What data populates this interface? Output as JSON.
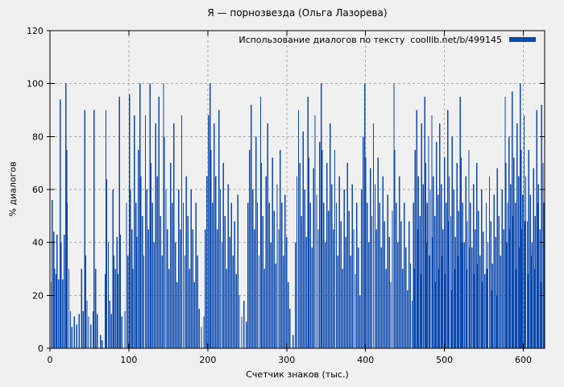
{
  "title": "Я — порнозвезда (Ольга Лазорева)",
  "legend": {
    "label": "Использование диалогов по тексту  coollib.net/b/499145"
  },
  "axes": {
    "y_label": "% диалогов",
    "x_label": "Счетчик знаков (тыс.)"
  },
  "colors": {
    "background": "#f0f0f0",
    "bar": "#0b49ae",
    "grid": "#a9a9a9",
    "border": "#000000",
    "text": "#000000"
  },
  "chart_data": {
    "type": "bar",
    "style": "impulses",
    "title": "Я — порнозвезда (Ольга Лазорева)",
    "legend_entry": "Использование диалогов по тексту  coollib.net/b/499145",
    "xlabel": "Счетчик знаков (тыс.)",
    "ylabel": "% диалогов",
    "xlim": [
      0,
      627
    ],
    "ylim": [
      0,
      120
    ],
    "xticks": [
      0,
      100,
      200,
      300,
      400,
      500,
      600
    ],
    "yticks": [
      0,
      20,
      40,
      60,
      80,
      100,
      120
    ],
    "grid": true,
    "grid_style": "dashed",
    "legend_position": "top-right-inside",
    "points": [
      [
        0,
        70
      ],
      [
        2,
        25
      ],
      [
        3,
        56
      ],
      [
        5,
        44
      ],
      [
        6,
        30
      ],
      [
        8,
        28
      ],
      [
        9,
        43
      ],
      [
        11,
        26
      ],
      [
        13,
        94
      ],
      [
        14,
        40
      ],
      [
        16,
        26
      ],
      [
        18,
        43
      ],
      [
        20,
        100
      ],
      [
        21,
        75
      ],
      [
        22,
        55
      ],
      [
        24,
        30
      ],
      [
        26,
        14
      ],
      [
        28,
        8
      ],
      [
        31,
        12
      ],
      [
        34,
        9
      ],
      [
        37,
        13
      ],
      [
        40,
        30
      ],
      [
        42,
        14
      ],
      [
        44,
        90
      ],
      [
        45,
        35
      ],
      [
        47,
        18
      ],
      [
        49,
        12
      ],
      [
        52,
        9
      ],
      [
        55,
        14
      ],
      [
        56,
        90
      ],
      [
        58,
        30
      ],
      [
        60,
        13
      ],
      [
        64,
        5
      ],
      [
        66,
        3
      ],
      [
        70,
        28
      ],
      [
        71,
        90
      ],
      [
        72,
        64
      ],
      [
        74,
        40
      ],
      [
        76,
        18
      ],
      [
        78,
        13
      ],
      [
        80,
        60
      ],
      [
        81,
        35
      ],
      [
        83,
        30
      ],
      [
        85,
        42
      ],
      [
        86,
        28
      ],
      [
        88,
        95
      ],
      [
        89,
        43
      ],
      [
        91,
        12
      ],
      [
        95,
        14
      ],
      [
        97,
        55
      ],
      [
        99,
        35
      ],
      [
        101,
        96
      ],
      [
        102,
        60
      ],
      [
        104,
        45
      ],
      [
        105,
        30
      ],
      [
        107,
        88
      ],
      [
        109,
        55
      ],
      [
        110,
        42
      ],
      [
        112,
        75
      ],
      [
        114,
        100
      ],
      [
        115,
        65
      ],
      [
        117,
        50
      ],
      [
        119,
        35
      ],
      [
        121,
        88
      ],
      [
        123,
        60
      ],
      [
        125,
        45
      ],
      [
        127,
        100
      ],
      [
        128,
        70
      ],
      [
        130,
        55
      ],
      [
        132,
        40
      ],
      [
        134,
        85
      ],
      [
        136,
        65
      ],
      [
        138,
        95
      ],
      [
        140,
        50
      ],
      [
        142,
        35
      ],
      [
        144,
        100
      ],
      [
        145,
        80
      ],
      [
        147,
        60
      ],
      [
        149,
        45
      ],
      [
        151,
        30
      ],
      [
        153,
        70
      ],
      [
        155,
        55
      ],
      [
        157,
        85
      ],
      [
        159,
        40
      ],
      [
        161,
        25
      ],
      [
        163,
        60
      ],
      [
        165,
        45
      ],
      [
        167,
        88
      ],
      [
        169,
        55
      ],
      [
        171,
        35
      ],
      [
        173,
        65
      ],
      [
        175,
        50
      ],
      [
        177,
        30
      ],
      [
        179,
        60
      ],
      [
        181,
        45
      ],
      [
        183,
        25
      ],
      [
        185,
        55
      ],
      [
        187,
        35
      ],
      [
        189,
        15
      ],
      [
        192,
        8
      ],
      [
        195,
        12
      ],
      [
        197,
        45
      ],
      [
        199,
        65
      ],
      [
        201,
        88
      ],
      [
        203,
        100
      ],
      [
        204,
        75
      ],
      [
        206,
        55
      ],
      [
        208,
        85
      ],
      [
        210,
        65
      ],
      [
        212,
        45
      ],
      [
        214,
        90
      ],
      [
        216,
        60
      ],
      [
        218,
        40
      ],
      [
        220,
        70
      ],
      [
        222,
        50
      ],
      [
        224,
        30
      ],
      [
        226,
        62
      ],
      [
        228,
        42
      ],
      [
        230,
        55
      ],
      [
        232,
        35
      ],
      [
        234,
        48
      ],
      [
        236,
        28
      ],
      [
        238,
        58
      ],
      [
        240,
        20
      ],
      [
        243,
        12
      ],
      [
        246,
        18
      ],
      [
        249,
        10
      ],
      [
        251,
        55
      ],
      [
        253,
        75
      ],
      [
        255,
        92
      ],
      [
        257,
        60
      ],
      [
        259,
        45
      ],
      [
        261,
        80
      ],
      [
        263,
        55
      ],
      [
        265,
        35
      ],
      [
        267,
        95
      ],
      [
        268,
        70
      ],
      [
        270,
        50
      ],
      [
        272,
        30
      ],
      [
        274,
        65
      ],
      [
        276,
        85
      ],
      [
        278,
        55
      ],
      [
        280,
        40
      ],
      [
        282,
        72
      ],
      [
        284,
        52
      ],
      [
        286,
        32
      ],
      [
        288,
        62
      ],
      [
        290,
        45
      ],
      [
        292,
        75
      ],
      [
        294,
        55
      ],
      [
        296,
        35
      ],
      [
        298,
        58
      ],
      [
        300,
        42
      ],
      [
        302,
        25
      ],
      [
        304,
        15
      ],
      [
        308,
        5
      ],
      [
        311,
        40
      ],
      [
        313,
        65
      ],
      [
        315,
        90
      ],
      [
        317,
        70
      ],
      [
        319,
        50
      ],
      [
        321,
        82
      ],
      [
        323,
        60
      ],
      [
        325,
        42
      ],
      [
        327,
        95
      ],
      [
        328,
        72
      ],
      [
        330,
        55
      ],
      [
        332,
        38
      ],
      [
        334,
        68
      ],
      [
        336,
        88
      ],
      [
        338,
        58
      ],
      [
        340,
        45
      ],
      [
        342,
        78
      ],
      [
        344,
        100
      ],
      [
        345,
        75
      ],
      [
        347,
        55
      ],
      [
        349,
        40
      ],
      [
        351,
        70
      ],
      [
        353,
        52
      ],
      [
        355,
        85
      ],
      [
        357,
        62
      ],
      [
        359,
        45
      ],
      [
        361,
        75
      ],
      [
        363,
        55
      ],
      [
        365,
        35
      ],
      [
        367,
        65
      ],
      [
        369,
        48
      ],
      [
        371,
        30
      ],
      [
        373,
        60
      ],
      [
        375,
        42
      ],
      [
        377,
        70
      ],
      [
        379,
        52
      ],
      [
        381,
        35
      ],
      [
        383,
        62
      ],
      [
        385,
        45
      ],
      [
        387,
        28
      ],
      [
        389,
        55
      ],
      [
        391,
        38
      ],
      [
        393,
        20
      ],
      [
        395,
        60
      ],
      [
        397,
        80
      ],
      [
        399,
        100
      ],
      [
        400,
        72
      ],
      [
        402,
        55
      ],
      [
        404,
        40
      ],
      [
        406,
        68
      ],
      [
        408,
        50
      ],
      [
        410,
        85
      ],
      [
        412,
        62
      ],
      [
        414,
        45
      ],
      [
        416,
        72
      ],
      [
        418,
        55
      ],
      [
        420,
        38
      ],
      [
        422,
        65
      ],
      [
        424,
        48
      ],
      [
        426,
        30
      ],
      [
        428,
        58
      ],
      [
        430,
        42
      ],
      [
        432,
        25
      ],
      [
        434,
        52
      ],
      [
        436,
        100
      ],
      [
        437,
        75
      ],
      [
        439,
        55
      ],
      [
        441,
        40
      ],
      [
        443,
        65
      ],
      [
        445,
        48
      ],
      [
        447,
        30
      ],
      [
        449,
        55
      ],
      [
        451,
        38
      ],
      [
        453,
        22
      ],
      [
        455,
        48
      ],
      [
        457,
        32
      ],
      [
        459,
        18
      ],
      [
        461,
        55
      ],
      [
        462,
        30
      ],
      [
        463,
        75
      ],
      [
        465,
        90
      ],
      [
        466,
        45
      ],
      [
        467,
        65
      ],
      [
        469,
        50
      ],
      [
        470,
        28
      ],
      [
        471,
        85
      ],
      [
        473,
        62
      ],
      [
        475,
        95
      ],
      [
        476,
        70
      ],
      [
        477,
        40
      ],
      [
        478,
        55
      ],
      [
        480,
        80
      ],
      [
        481,
        35
      ],
      [
        482,
        60
      ],
      [
        484,
        88
      ],
      [
        485,
        42
      ],
      [
        486,
        65
      ],
      [
        488,
        50
      ],
      [
        489,
        25
      ],
      [
        490,
        78
      ],
      [
        492,
        58
      ],
      [
        493,
        30
      ],
      [
        494,
        85
      ],
      [
        496,
        62
      ],
      [
        497,
        35
      ],
      [
        498,
        45
      ],
      [
        500,
        72
      ],
      [
        501,
        28
      ],
      [
        502,
        55
      ],
      [
        504,
        90
      ],
      [
        505,
        48
      ],
      [
        506,
        65
      ],
      [
        508,
        50
      ],
      [
        509,
        22
      ],
      [
        510,
        80
      ],
      [
        512,
        60
      ],
      [
        513,
        30
      ],
      [
        514,
        42
      ],
      [
        516,
        70
      ],
      [
        517,
        35
      ],
      [
        518,
        52
      ],
      [
        520,
        95
      ],
      [
        521,
        72
      ],
      [
        522,
        40
      ],
      [
        523,
        55
      ],
      [
        525,
        40
      ],
      [
        527,
        65
      ],
      [
        528,
        30
      ],
      [
        529,
        48
      ],
      [
        531,
        75
      ],
      [
        532,
        38
      ],
      [
        533,
        55
      ],
      [
        535,
        38
      ],
      [
        537,
        62
      ],
      [
        538,
        28
      ],
      [
        539,
        45
      ],
      [
        541,
        70
      ],
      [
        542,
        32
      ],
      [
        543,
        52
      ],
      [
        545,
        35
      ],
      [
        547,
        60
      ],
      [
        548,
        25
      ],
      [
        549,
        44
      ],
      [
        551,
        28
      ],
      [
        553,
        55
      ],
      [
        554,
        30
      ],
      [
        555,
        40
      ],
      [
        557,
        65
      ],
      [
        559,
        48
      ],
      [
        560,
        22
      ],
      [
        561,
        32
      ],
      [
        563,
        58
      ],
      [
        565,
        42
      ],
      [
        566,
        20
      ],
      [
        567,
        68
      ],
      [
        569,
        50
      ],
      [
        571,
        35
      ],
      [
        573,
        60
      ],
      [
        575,
        45
      ],
      [
        577,
        95
      ],
      [
        578,
        70
      ],
      [
        579,
        40
      ],
      [
        580,
        55
      ],
      [
        582,
        80
      ],
      [
        583,
        45
      ],
      [
        584,
        62
      ],
      [
        586,
        97
      ],
      [
        587,
        50
      ],
      [
        588,
        72
      ],
      [
        590,
        55
      ],
      [
        591,
        30
      ],
      [
        592,
        85
      ],
      [
        594,
        65
      ],
      [
        595,
        38
      ],
      [
        596,
        100
      ],
      [
        597,
        75
      ],
      [
        598,
        45
      ],
      [
        599,
        58
      ],
      [
        601,
        88
      ],
      [
        602,
        48
      ],
      [
        603,
        65
      ],
      [
        605,
        48
      ],
      [
        606,
        28
      ],
      [
        607,
        75
      ],
      [
        609,
        58
      ],
      [
        610,
        35
      ],
      [
        611,
        40
      ],
      [
        613,
        68
      ],
      [
        614,
        30
      ],
      [
        615,
        50
      ],
      [
        617,
        90
      ],
      [
        618,
        55
      ],
      [
        619,
        62
      ],
      [
        621,
        45
      ],
      [
        622,
        25
      ],
      [
        623,
        92
      ],
      [
        625,
        70
      ],
      [
        626,
        55
      ]
    ]
  }
}
